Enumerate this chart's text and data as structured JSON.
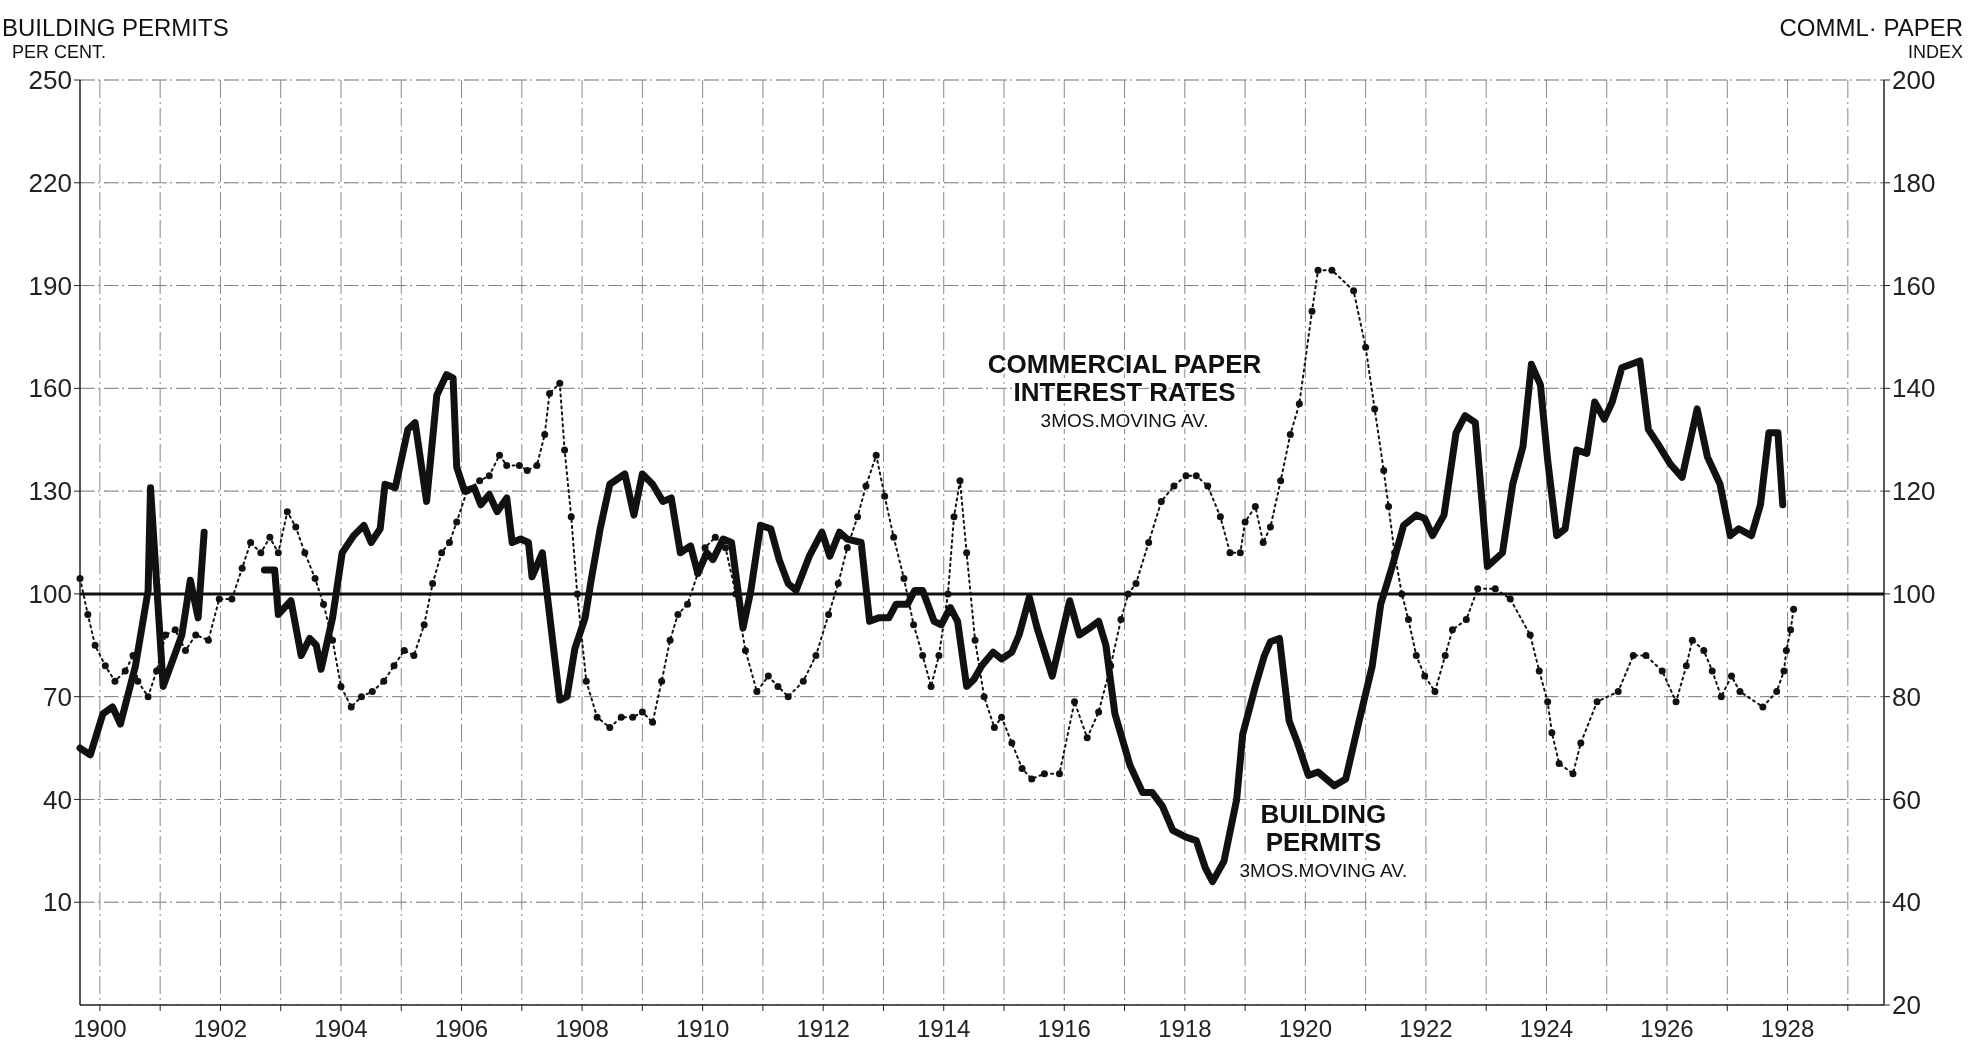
{
  "chart_data": {
    "type": "line",
    "ylabel": "BUILDING PERMITS\nPER CENT.",
    "y2label": "COMML· PAPER\nINDEX",
    "annotations": [
      "3MOS.MOVING AV.",
      "3MOS.MOVING AV."
    ],
    "xlim": [
      1899.67,
      1929.6
    ],
    "xticks": [
      1900,
      {
        "value": 1901,
        "label": null
      },
      1902,
      {
        "value": 1903,
        "label": null
      },
      1904,
      {
        "value": 1905,
        "label": null
      },
      1906,
      {
        "value": 1907,
        "label": null
      },
      1908,
      {
        "value": 1909,
        "label": null
      },
      1910,
      {
        "value": 1911,
        "label": null
      },
      1912,
      {
        "value": 1913,
        "label": null
      },
      1914,
      {
        "value": 1915,
        "label": null
      },
      1916,
      {
        "value": 1917,
        "label": null
      },
      1918,
      {
        "value": 1919,
        "label": null
      },
      1920,
      {
        "value": 1921,
        "label": null
      },
      1922,
      {
        "value": 1923,
        "label": null
      },
      1924,
      {
        "value": 1925,
        "label": null
      },
      1926,
      {
        "value": 1927,
        "label": null
      },
      1928,
      {
        "value": 1929,
        "label": null
      }
    ],
    "ylim": [
      -20,
      250
    ],
    "yticks": [
      10,
      40,
      70,
      100,
      130,
      160,
      190,
      220,
      250
    ],
    "y2lim": [
      20,
      200
    ],
    "y2ticks": [
      20,
      40,
      60,
      80,
      100,
      120,
      140,
      160,
      180,
      200
    ],
    "grid": true,
    "ref_lines": [
      {
        "axis": "y",
        "value": 100,
        "color": "#111111"
      }
    ],
    "series": [
      {
        "name": "BUILDING PERMITS",
        "color": "#111111",
        "line_style": "solid",
        "marker": "none",
        "x": [
          1899.67,
          1899.84,
          1900.05,
          1900.21,
          1900.34,
          1900.59,
          1900.8,
          1900.84,
          1901.05,
          1901.36,
          1901.5,
          1901.63,
          1901.73,
          1902.2,
          1902.73,
          1902.9,
          1902.96,
          1903.17,
          1903.34,
          1903.48,
          1903.59,
          1903.67,
          1903.86,
          1904.02,
          1904.21,
          1904.38,
          1904.5,
          1904.65,
          1904.73,
          1904.9,
          1905.11,
          1905.23,
          1905.42,
          1905.59,
          1905.75,
          1905.86,
          1905.92,
          1906.05,
          1906.21,
          1906.32,
          1906.46,
          1906.59,
          1906.75,
          1906.84,
          1906.98,
          1907.11,
          1907.17,
          1907.34,
          1907.5,
          1907.63,
          1907.75,
          1907.88,
          1908.05,
          1908.15,
          1908.3,
          1908.46,
          1908.71,
          1908.86,
          1909.0,
          1909.17,
          1909.34,
          1909.48,
          1909.63,
          1909.8,
          1909.92,
          1910.07,
          1910.17,
          1910.34,
          1910.48,
          1910.67,
          1910.8,
          1910.96,
          1911.13,
          1911.27,
          1911.42,
          1911.55,
          1911.77,
          1911.98,
          1912.11,
          1912.27,
          1912.4,
          1912.63,
          1912.77,
          1912.92,
          1913.09,
          1913.21,
          1913.4,
          1913.52,
          1913.65,
          1913.84,
          1913.96,
          1914.11,
          1914.23,
          1914.38,
          1914.5,
          1914.63,
          1914.82,
          1914.96,
          1915.13,
          1915.25,
          1915.42,
          1915.55,
          1915.8,
          1916.09,
          1916.25,
          1916.42,
          1916.57,
          1916.69,
          1916.84,
          1917.09,
          1917.3,
          1917.46,
          1917.63,
          1917.8,
          1918.02,
          1918.19,
          1918.34,
          1918.46,
          1918.65,
          1918.86,
          1918.96,
          1919.17,
          1919.32,
          1919.42,
          1919.57,
          1919.73,
          1919.86,
          1920.05,
          1920.21,
          1920.48,
          1920.67,
          1920.88,
          1921.11,
          1921.25,
          1921.44,
          1921.63,
          1921.84,
          1921.98,
          1922.11,
          1922.3,
          1922.5,
          1922.65,
          1922.82,
          1923.02,
          1923.27,
          1923.44,
          1923.61,
          1923.75,
          1923.9,
          1924.02,
          1924.17,
          1924.31,
          1924.5,
          1924.67,
          1924.8,
          1924.96,
          1925.09,
          1925.25,
          1925.55,
          1925.69,
          1925.84,
          1926.05,
          1926.25,
          1926.5,
          1926.67,
          1926.88,
          1927.05,
          1927.19,
          1927.4,
          1927.55,
          1927.69,
          1927.84,
          1927.92
        ],
        "values": [
          55,
          53,
          65,
          67,
          62,
          79,
          101,
          131,
          73,
          88,
          104,
          93,
          118,
          null,
          107,
          107,
          94,
          98,
          82,
          87,
          85,
          78,
          93,
          112,
          117,
          120,
          115,
          119,
          132,
          131,
          148,
          150,
          127,
          158,
          164,
          163,
          137,
          130,
          131,
          126,
          129,
          124,
          128,
          115,
          116,
          115,
          105,
          112,
          88,
          69,
          70,
          84,
          93,
          104,
          119,
          132,
          135,
          123,
          135,
          132,
          127,
          128,
          112,
          114,
          106,
          112,
          110,
          116,
          115,
          90,
          101,
          120,
          119,
          110,
          103,
          101,
          111,
          118,
          111,
          118,
          116,
          115,
          92,
          93,
          93,
          97,
          97,
          101,
          101,
          92,
          91,
          96,
          92,
          73,
          75,
          79,
          83,
          81,
          83,
          88,
          99,
          90,
          76,
          98,
          88,
          90,
          92,
          85,
          65,
          50,
          42,
          42,
          38,
          31,
          29,
          28,
          20,
          16,
          22,
          40,
          59,
          73,
          82,
          86,
          87,
          63,
          57,
          47,
          48,
          44,
          46,
          62,
          79,
          97,
          108,
          120,
          123,
          122,
          117,
          123,
          147,
          152,
          150,
          108,
          112,
          132,
          143,
          167,
          161,
          139,
          117,
          119,
          142,
          141,
          156,
          151,
          156,
          166,
          168,
          148,
          144,
          138,
          134,
          154,
          140,
          132,
          117,
          119,
          117,
          126,
          147,
          147,
          126
        ]
      },
      {
        "name": "COMMERCIAL PAPER INTEREST RATES",
        "color": "#111111",
        "axis": "y2",
        "line_style": "dotted",
        "marker": "circle",
        "x": [
          1899.67,
          1899.8,
          1899.92,
          1900.09,
          1900.25,
          1900.42,
          1900.55,
          1900.63,
          1900.8,
          1900.94,
          1901.09,
          1901.25,
          1901.42,
          1901.59,
          1901.8,
          1901.98,
          1902.19,
          1902.36,
          1902.5,
          1902.67,
          1902.82,
          1902.96,
          1903.11,
          1903.25,
          1903.4,
          1903.57,
          1903.71,
          1903.86,
          1904.0,
          1904.17,
          1904.34,
          1904.52,
          1904.71,
          1904.88,
          1905.05,
          1905.21,
          1905.38,
          1905.52,
          1905.67,
          1905.8,
          1905.92,
          1906.09,
          1906.3,
          1906.46,
          1906.63,
          1906.75,
          1906.96,
          1907.09,
          1907.25,
          1907.38,
          1907.46,
          1907.63,
          1907.71,
          1907.82,
          1907.92,
          1908.07,
          1908.25,
          1908.46,
          1908.65,
          1908.84,
          1909.0,
          1909.17,
          1909.32,
          1909.46,
          1909.59,
          1909.75,
          1909.92,
          1910.04,
          1910.21,
          1910.38,
          1910.55,
          1910.71,
          1910.9,
          1911.09,
          1911.25,
          1911.42,
          1911.67,
          1911.88,
          1912.09,
          1912.25,
          1912.4,
          1912.57,
          1912.71,
          1912.88,
          1913.02,
          1913.17,
          1913.34,
          1913.5,
          1913.65,
          1913.79,
          1913.92,
          1914.07,
          1914.17,
          1914.27,
          1914.38,
          1914.52,
          1914.67,
          1914.84,
          1914.96,
          1915.13,
          1915.3,
          1915.46,
          1915.67,
          1915.92,
          1916.17,
          1916.38,
          1916.57,
          1916.77,
          1916.94,
          1917.06,
          1917.19,
          1917.4,
          1917.61,
          1917.82,
          1918.02,
          1918.19,
          1918.38,
          1918.59,
          1918.75,
          1918.92,
          1919.0,
          1919.17,
          1919.3,
          1919.42,
          1919.59,
          1919.75,
          1919.9,
          1920.11,
          1920.21,
          1920.44,
          1920.8,
          1921.0,
          1921.15,
          1921.3,
          1921.38,
          1921.48,
          1921.6,
          1921.71,
          1921.84,
          1921.98,
          1922.15,
          1922.32,
          1922.44,
          1922.67,
          1922.86,
          1923.15,
          1923.4,
          1923.73,
          1923.88,
          1924.02,
          1924.09,
          1924.21,
          1924.44,
          1924.57,
          1924.84,
          1925.19,
          1925.44,
          1925.65,
          1925.92,
          1926.15,
          1926.32,
          1926.42,
          1926.61,
          1926.75,
          1926.9,
          1927.07,
          1927.21,
          1927.59,
          1927.82,
          1927.94,
          1927.98,
          1928.05,
          1928.1
        ],
        "values": [
          103,
          96,
          90,
          86,
          83,
          85,
          88,
          83,
          80,
          85,
          92,
          93,
          89,
          92,
          91,
          99,
          99,
          105,
          110,
          108,
          111,
          108,
          116,
          113,
          108,
          103,
          98,
          91,
          82,
          78,
          80,
          81,
          83,
          86,
          89,
          88,
          94,
          102,
          108,
          110,
          114,
          120,
          122,
          123,
          127,
          125,
          125,
          124,
          125,
          131,
          139,
          141,
          128,
          115,
          100,
          83,
          76,
          74,
          76,
          76,
          77,
          75,
          83,
          91,
          96,
          98,
          104,
          109,
          111,
          109,
          100,
          89,
          81,
          84,
          82,
          80,
          83,
          88,
          96,
          102,
          109,
          115,
          121,
          127,
          119,
          111,
          103,
          94,
          88,
          82,
          88,
          100,
          115,
          122,
          108,
          91,
          80,
          74,
          76,
          71,
          66,
          64,
          65,
          65,
          79,
          72,
          77,
          86,
          95,
          100,
          102,
          110,
          118,
          121,
          123,
          123,
          121,
          115,
          108,
          108,
          114,
          117,
          110,
          113,
          122,
          131,
          137,
          155,
          163,
          163,
          159,
          148,
          136,
          124,
          117,
          108,
          100,
          95,
          88,
          84,
          81,
          88,
          93,
          95,
          101,
          101,
          99,
          92,
          85,
          79,
          73,
          67,
          65,
          71,
          79,
          81,
          88,
          88,
          85,
          79,
          86,
          91,
          89,
          85,
          80,
          84,
          81,
          78,
          81,
          85,
          89,
          93,
          97
        ]
      }
    ]
  }
}
